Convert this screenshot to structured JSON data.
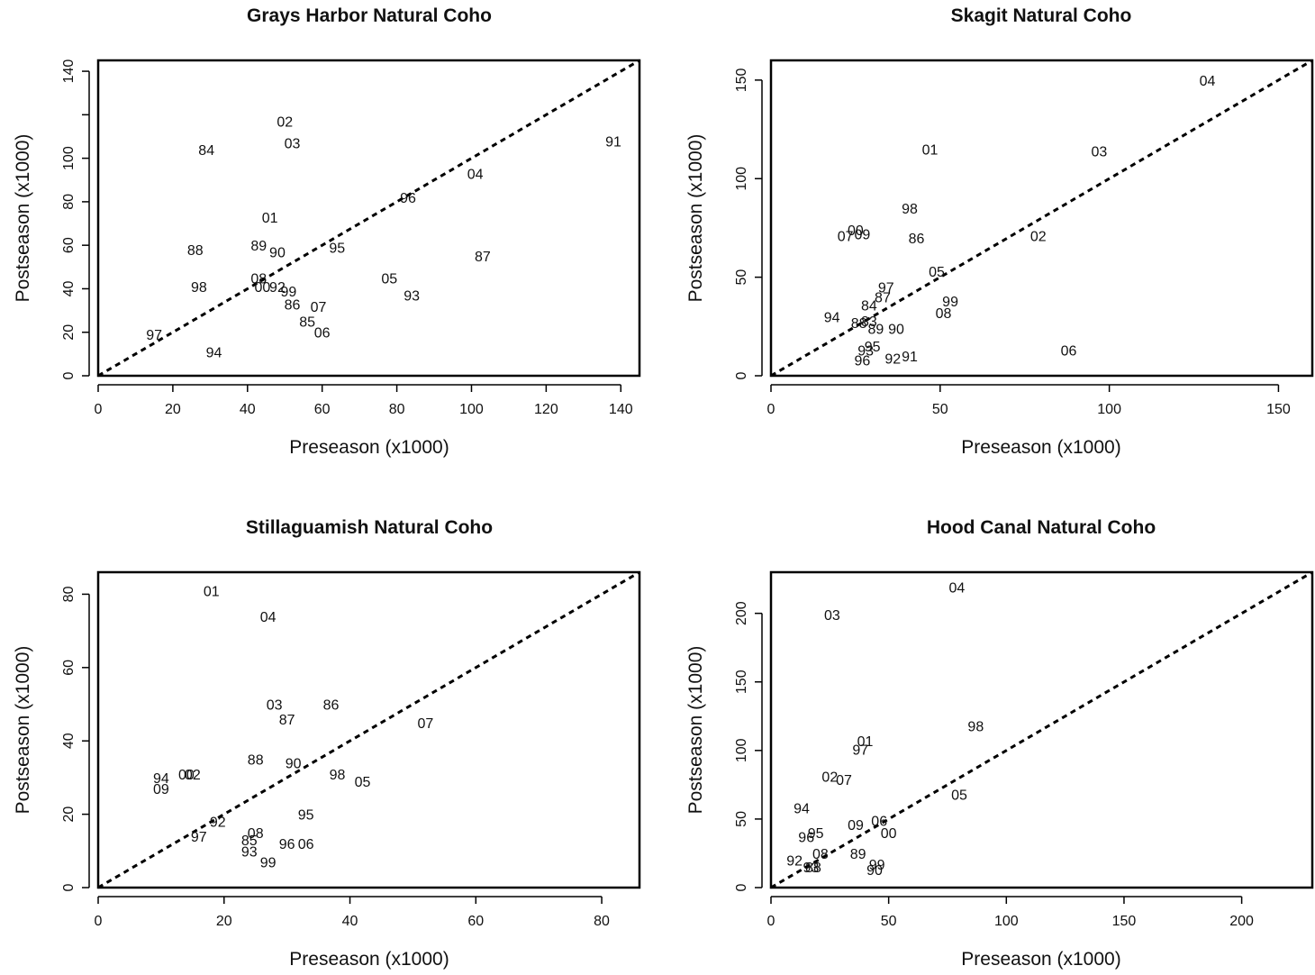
{
  "chart_data": [
    {
      "type": "scatter",
      "title": "Grays Harbor Natural Coho",
      "xlabel": "Preseason (x1000)",
      "ylabel": "Postseason (x1000)",
      "xlim": [
        0,
        145
      ],
      "ylim": [
        0,
        145
      ],
      "xticks": [
        0,
        20,
        40,
        60,
        80,
        100,
        120,
        140
      ],
      "yticks": [
        0,
        20,
        40,
        60,
        80,
        100,
        120,
        140
      ],
      "ytick_labels": [
        "0",
        "20",
        "40",
        "60",
        "80",
        "100",
        "",
        "140"
      ],
      "reference_line": "y = x (dashed)",
      "points": [
        {
          "label": "02",
          "x": 50,
          "y": 117
        },
        {
          "label": "03",
          "x": 52,
          "y": 107
        },
        {
          "label": "84",
          "x": 29,
          "y": 104
        },
        {
          "label": "91",
          "x": 138,
          "y": 108
        },
        {
          "label": "04",
          "x": 101,
          "y": 93
        },
        {
          "label": "96",
          "x": 83,
          "y": 82
        },
        {
          "label": "01",
          "x": 46,
          "y": 73
        },
        {
          "label": "88",
          "x": 26,
          "y": 58
        },
        {
          "label": "89",
          "x": 43,
          "y": 60
        },
        {
          "label": "90",
          "x": 48,
          "y": 57
        },
        {
          "label": "95",
          "x": 64,
          "y": 59
        },
        {
          "label": "87",
          "x": 103,
          "y": 55
        },
        {
          "label": "08",
          "x": 43,
          "y": 45
        },
        {
          "label": "05",
          "x": 78,
          "y": 45
        },
        {
          "label": "98",
          "x": 27,
          "y": 41
        },
        {
          "label": "00",
          "x": 44,
          "y": 41
        },
        {
          "label": "92",
          "x": 48,
          "y": 41
        },
        {
          "label": "99",
          "x": 51,
          "y": 39
        },
        {
          "label": "93",
          "x": 84,
          "y": 37
        },
        {
          "label": "86",
          "x": 52,
          "y": 33
        },
        {
          "label": "07",
          "x": 59,
          "y": 32
        },
        {
          "label": "85",
          "x": 56,
          "y": 25
        },
        {
          "label": "06",
          "x": 60,
          "y": 20
        },
        {
          "label": "97",
          "x": 15,
          "y": 19
        },
        {
          "label": "94",
          "x": 31,
          "y": 11
        }
      ]
    },
    {
      "type": "scatter",
      "title": "Skagit Natural Coho",
      "xlabel": "Preseason (x1000)",
      "ylabel": "Postseason (x1000)",
      "xlim": [
        0,
        160
      ],
      "ylim": [
        0,
        160
      ],
      "xticks": [
        0,
        50,
        100,
        150
      ],
      "yticks": [
        0,
        50,
        100,
        150
      ],
      "reference_line": "y = x (dashed)",
      "points": [
        {
          "label": "04",
          "x": 129,
          "y": 150
        },
        {
          "label": "01",
          "x": 47,
          "y": 115
        },
        {
          "label": "03",
          "x": 97,
          "y": 114
        },
        {
          "label": "98",
          "x": 41,
          "y": 85
        },
        {
          "label": "00",
          "x": 25,
          "y": 74
        },
        {
          "label": "07",
          "x": 22,
          "y": 71
        },
        {
          "label": "09",
          "x": 27,
          "y": 72
        },
        {
          "label": "86",
          "x": 43,
          "y": 70
        },
        {
          "label": "02",
          "x": 79,
          "y": 71
        },
        {
          "label": "05",
          "x": 49,
          "y": 53
        },
        {
          "label": "97",
          "x": 34,
          "y": 45
        },
        {
          "label": "87",
          "x": 33,
          "y": 40
        },
        {
          "label": "99",
          "x": 53,
          "y": 38
        },
        {
          "label": "84",
          "x": 29,
          "y": 36
        },
        {
          "label": "08",
          "x": 51,
          "y": 32
        },
        {
          "label": "94",
          "x": 18,
          "y": 30
        },
        {
          "label": "88",
          "x": 26,
          "y": 27
        },
        {
          "label": "83",
          "x": 29,
          "y": 28
        },
        {
          "label": "89",
          "x": 31,
          "y": 24
        },
        {
          "label": "90",
          "x": 37,
          "y": 24
        },
        {
          "label": "95",
          "x": 30,
          "y": 15
        },
        {
          "label": "93",
          "x": 28,
          "y": 13
        },
        {
          "label": "06",
          "x": 88,
          "y": 13
        },
        {
          "label": "92",
          "x": 36,
          "y": 9
        },
        {
          "label": "91",
          "x": 41,
          "y": 10
        },
        {
          "label": "96",
          "x": 27,
          "y": 8
        }
      ]
    },
    {
      "type": "scatter",
      "title": "Stillaguamish Natural Coho",
      "xlabel": "Preseason (x1000)",
      "ylabel": "Postseason (x1000)",
      "xlim": [
        0,
        86
      ],
      "ylim": [
        0,
        86
      ],
      "xticks": [
        0,
        20,
        40,
        60,
        80
      ],
      "yticks": [
        0,
        20,
        40,
        60,
        80
      ],
      "reference_line": "y = x (dashed)",
      "points": [
        {
          "label": "01",
          "x": 18,
          "y": 81
        },
        {
          "label": "04",
          "x": 27,
          "y": 74
        },
        {
          "label": "03",
          "x": 28,
          "y": 50
        },
        {
          "label": "86",
          "x": 37,
          "y": 50
        },
        {
          "label": "87",
          "x": 30,
          "y": 46
        },
        {
          "label": "07",
          "x": 52,
          "y": 45
        },
        {
          "label": "88",
          "x": 25,
          "y": 35
        },
        {
          "label": "90",
          "x": 31,
          "y": 34
        },
        {
          "label": "98",
          "x": 38,
          "y": 31
        },
        {
          "label": "05",
          "x": 42,
          "y": 29
        },
        {
          "label": "94",
          "x": 10,
          "y": 30
        },
        {
          "label": "00",
          "x": 14,
          "y": 31
        },
        {
          "label": "02",
          "x": 15,
          "y": 31
        },
        {
          "label": "09",
          "x": 10,
          "y": 27
        },
        {
          "label": "95",
          "x": 33,
          "y": 20
        },
        {
          "label": "92",
          "x": 19,
          "y": 18
        },
        {
          "label": "08",
          "x": 25,
          "y": 15
        },
        {
          "label": "97",
          "x": 16,
          "y": 14
        },
        {
          "label": "85",
          "x": 24,
          "y": 13
        },
        {
          "label": "96",
          "x": 30,
          "y": 12
        },
        {
          "label": "06",
          "x": 33,
          "y": 12
        },
        {
          "label": "93",
          "x": 24,
          "y": 10
        },
        {
          "label": "99",
          "x": 27,
          "y": 7
        }
      ]
    },
    {
      "type": "scatter",
      "title": "Hood Canal Natural Coho",
      "xlabel": "Preseason (x1000)",
      "ylabel": "Postseason (x1000)",
      "xlim": [
        0,
        230
      ],
      "ylim": [
        0,
        230
      ],
      "xticks": [
        0,
        50,
        100,
        150,
        200
      ],
      "yticks": [
        0,
        50,
        100,
        150,
        200
      ],
      "reference_line": "y = x (dashed)",
      "points": [
        {
          "label": "04",
          "x": 79,
          "y": 219
        },
        {
          "label": "03",
          "x": 26,
          "y": 199
        },
        {
          "label": "98",
          "x": 87,
          "y": 118
        },
        {
          "label": "01",
          "x": 40,
          "y": 107
        },
        {
          "label": "97",
          "x": 38,
          "y": 101
        },
        {
          "label": "02",
          "x": 25,
          "y": 81
        },
        {
          "label": "07",
          "x": 31,
          "y": 79
        },
        {
          "label": "05",
          "x": 80,
          "y": 68
        },
        {
          "label": "94",
          "x": 13,
          "y": 58
        },
        {
          "label": "06",
          "x": 46,
          "y": 49
        },
        {
          "label": "09",
          "x": 36,
          "y": 46
        },
        {
          "label": "95",
          "x": 19,
          "y": 40
        },
        {
          "label": "96",
          "x": 15,
          "y": 37
        },
        {
          "label": "00",
          "x": 50,
          "y": 40
        },
        {
          "label": "89",
          "x": 37,
          "y": 25
        },
        {
          "label": "08",
          "x": 21,
          "y": 25
        },
        {
          "label": "92",
          "x": 10,
          "y": 20
        },
        {
          "label": "88",
          "x": 18,
          "y": 15
        },
        {
          "label": "93",
          "x": 17,
          "y": 15
        },
        {
          "label": "99",
          "x": 45,
          "y": 17
        },
        {
          "label": "90",
          "x": 44,
          "y": 13
        }
      ]
    }
  ]
}
